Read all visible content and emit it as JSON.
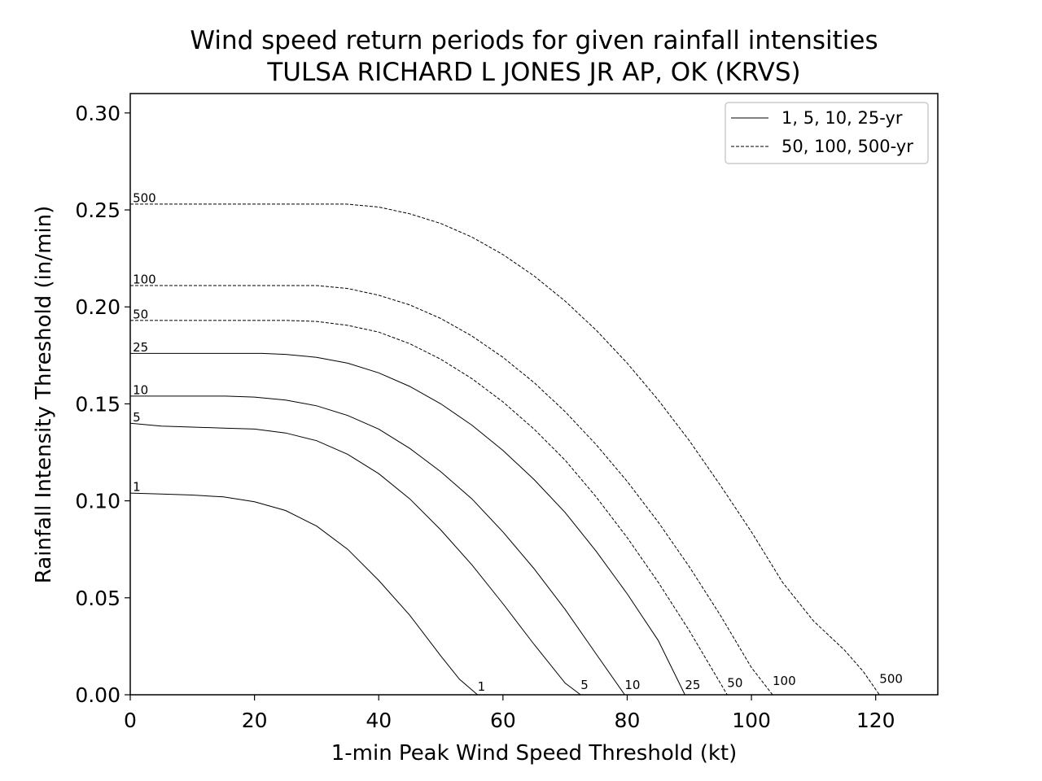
{
  "chart_data": {
    "type": "line",
    "title": "Wind speed return periods for given rainfall intensities",
    "subtitle": "TULSA RICHARD L JONES JR AP, OK (KRVS)",
    "xlabel": "1-min Peak Wind Speed Threshold (kt)",
    "ylabel": "Rainfall Intensity Threshold (in/min)",
    "xlim": [
      0,
      130
    ],
    "ylim": [
      0,
      0.31
    ],
    "xticks": [
      0,
      20,
      40,
      60,
      80,
      100,
      120
    ],
    "xtick_labels": [
      "0",
      "20",
      "40",
      "60",
      "80",
      "100",
      "120"
    ],
    "yticks": [
      0,
      0.05,
      0.1,
      0.15,
      0.2,
      0.25,
      0.3
    ],
    "ytick_labels": [
      "0.00",
      "0.05",
      "0.10",
      "0.15",
      "0.20",
      "0.25",
      "0.30"
    ],
    "grid": false,
    "legend_position": "top-right",
    "legend": [
      {
        "label": "1, 5, 10, 25-yr",
        "style": "solid"
      },
      {
        "label": "50, 100, 500-yr",
        "style": "dashed"
      }
    ],
    "series": [
      {
        "name": "1",
        "style": "solid",
        "x": [
          0,
          5,
          10,
          15,
          20,
          25,
          30,
          35,
          40,
          45,
          50,
          53,
          55.9
        ],
        "y": [
          0.104,
          0.1035,
          0.103,
          0.102,
          0.0995,
          0.095,
          0.087,
          0.075,
          0.059,
          0.041,
          0.02,
          0.008,
          0.0
        ]
      },
      {
        "name": "5",
        "style": "solid",
        "x": [
          0,
          5,
          10,
          15,
          20,
          25,
          30,
          35,
          40,
          45,
          50,
          55,
          60,
          65,
          70,
          72.5
        ],
        "y": [
          0.14,
          0.1385,
          0.138,
          0.1375,
          0.137,
          0.135,
          0.131,
          0.124,
          0.114,
          0.101,
          0.085,
          0.067,
          0.047,
          0.026,
          0.006,
          0.0
        ]
      },
      {
        "name": "10",
        "style": "solid",
        "x": [
          0,
          15.3,
          20,
          25,
          30,
          35,
          40,
          45,
          50,
          55,
          60,
          65,
          70,
          75,
          79.6
        ],
        "y": [
          0.154,
          0.154,
          0.1535,
          0.152,
          0.149,
          0.144,
          0.137,
          0.127,
          0.115,
          0.101,
          0.084,
          0.065,
          0.044,
          0.021,
          0.0
        ]
      },
      {
        "name": "25",
        "style": "solid",
        "x": [
          0,
          21.2,
          25,
          30,
          35,
          40,
          45,
          50,
          55,
          60,
          65,
          70,
          75,
          80,
          85,
          89.3
        ],
        "y": [
          0.176,
          0.176,
          0.1755,
          0.174,
          0.171,
          0.166,
          0.159,
          0.15,
          0.139,
          0.126,
          0.111,
          0.094,
          0.074,
          0.052,
          0.028,
          0.0
        ]
      },
      {
        "name": "50",
        "style": "dashed",
        "x": [
          0,
          25.3,
          30,
          35,
          40,
          45,
          50,
          55,
          60,
          65,
          70,
          75,
          80,
          85,
          90,
          96.1
        ],
        "y": [
          0.193,
          0.193,
          0.1925,
          0.1905,
          0.187,
          0.181,
          0.173,
          0.163,
          0.151,
          0.137,
          0.121,
          0.102,
          0.081,
          0.058,
          0.033,
          0.0
        ]
      },
      {
        "name": "100",
        "style": "dashed",
        "x": [
          0,
          30,
          35,
          40,
          45,
          50,
          55,
          60,
          65,
          70,
          75,
          80,
          85,
          90,
          95,
          100,
          103.4
        ],
        "y": [
          0.211,
          0.211,
          0.2095,
          0.206,
          0.201,
          0.194,
          0.185,
          0.174,
          0.161,
          0.146,
          0.129,
          0.11,
          0.089,
          0.066,
          0.041,
          0.014,
          0.0
        ]
      },
      {
        "name": "500",
        "style": "dashed",
        "x": [
          0,
          34.8,
          40,
          45,
          50,
          55,
          60,
          65,
          70,
          75,
          80,
          85,
          90,
          95,
          100,
          105,
          110,
          115,
          118,
          120.6
        ],
        "y": [
          0.253,
          0.253,
          0.2515,
          0.248,
          0.243,
          0.236,
          0.227,
          0.216,
          0.203,
          0.188,
          0.171,
          0.152,
          0.131,
          0.108,
          0.084,
          0.058,
          0.038,
          0.023,
          0.012,
          0.0
        ]
      }
    ],
    "start_labels": [
      {
        "text": "1",
        "x": 0.4,
        "y": 0.105
      },
      {
        "text": "5",
        "x": 0.4,
        "y": 0.141
      },
      {
        "text": "10",
        "x": 0.4,
        "y": 0.155
      },
      {
        "text": "25",
        "x": 0.4,
        "y": 0.177
      },
      {
        "text": "50",
        "x": 0.4,
        "y": 0.194
      },
      {
        "text": "100",
        "x": 0.4,
        "y": 0.212
      },
      {
        "text": "500",
        "x": 0.4,
        "y": 0.254
      }
    ],
    "end_labels": [
      {
        "text": "1",
        "x": 55.9,
        "y": 0.002
      },
      {
        "text": "5",
        "x": 72.5,
        "y": 0.003
      },
      {
        "text": "10",
        "x": 79.6,
        "y": 0.003
      },
      {
        "text": "25",
        "x": 89.3,
        "y": 0.003
      },
      {
        "text": "50",
        "x": 96.1,
        "y": 0.004
      },
      {
        "text": "100",
        "x": 103.4,
        "y": 0.005
      },
      {
        "text": "500",
        "x": 120.6,
        "y": 0.006
      }
    ]
  }
}
